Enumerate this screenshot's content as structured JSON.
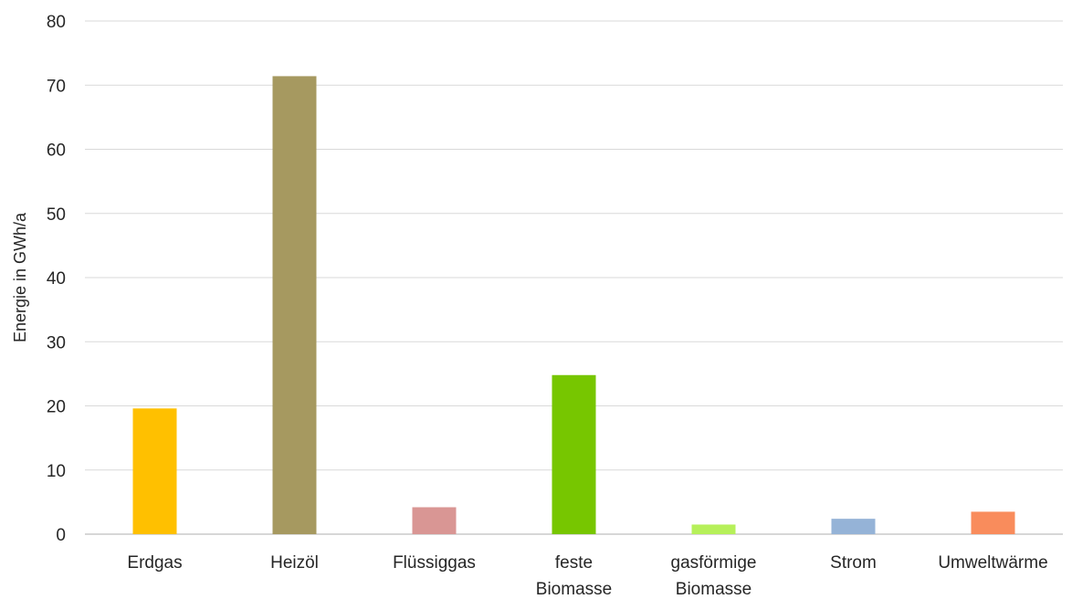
{
  "chart_data": {
    "type": "bar",
    "categories": [
      [
        "Erdgas"
      ],
      [
        "Heizöl"
      ],
      [
        "Flüssiggas"
      ],
      [
        "feste",
        "Biomasse"
      ],
      [
        "gasförmige",
        "Biomasse"
      ],
      [
        "Strom"
      ],
      [
        "Umweltwärme"
      ]
    ],
    "values": [
      19.6,
      71.4,
      4.2,
      24.8,
      1.5,
      2.4,
      3.5
    ],
    "colors": [
      "#ffc000",
      "#a69960",
      "#d99694",
      "#77c600",
      "#b6f05a",
      "#95b3d7",
      "#f98c5c"
    ],
    "title": "",
    "xlabel": "",
    "ylabel": "Energie in GWh/a",
    "ylim": [
      0,
      80
    ],
    "yticks": [
      0,
      10,
      20,
      30,
      40,
      50,
      60,
      70,
      80
    ],
    "grid": true,
    "legend": "none"
  }
}
